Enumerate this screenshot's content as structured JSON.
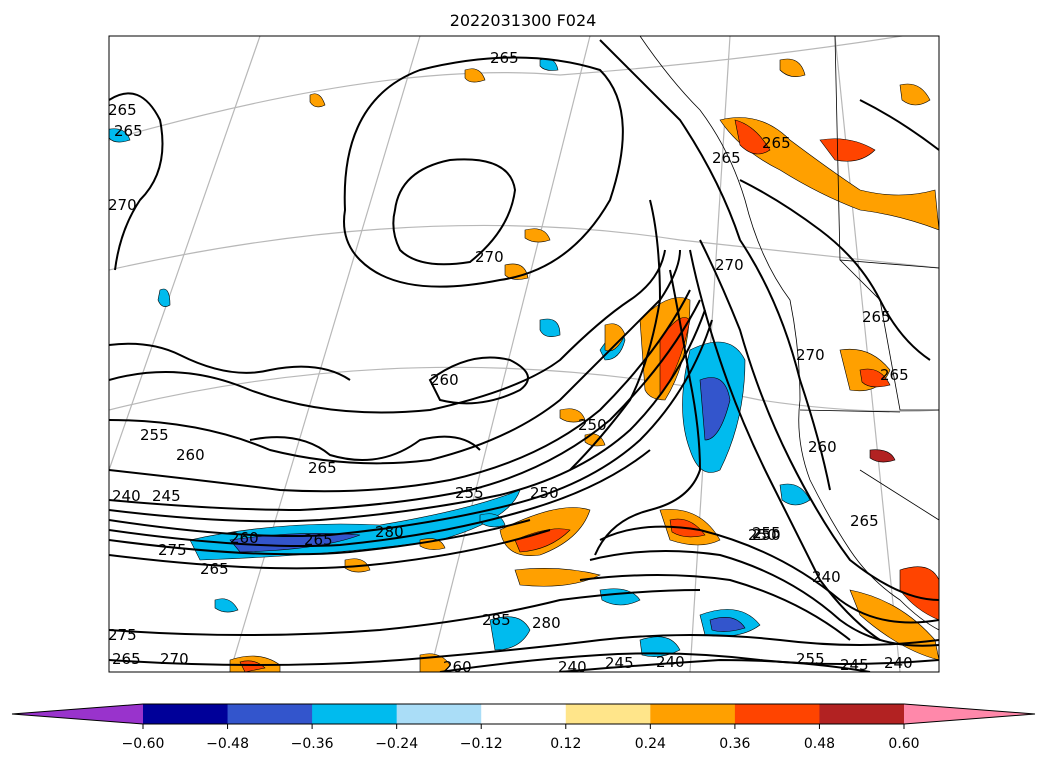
{
  "title": "2022031300 F024",
  "map": {
    "type": "contour map",
    "filled_field_colorbar": true,
    "line_contour_labels_visible": [
      "265",
      "265",
      "265",
      "270",
      "270",
      "270",
      "265",
      "260",
      "255",
      "260",
      "265",
      "240",
      "245",
      "255",
      "250",
      "260",
      "265",
      "280",
      "250",
      "255",
      "265",
      "265",
      "260",
      "270",
      "265",
      "240",
      "285",
      "280",
      "260",
      "240",
      "245",
      "240",
      "250",
      "255",
      "245",
      "240",
      "275",
      "265",
      "270",
      "275",
      "265",
      "250",
      "265"
    ],
    "graticule": true
  },
  "colorbar": {
    "ticks": [
      "−0.60",
      "−0.48",
      "−0.36",
      "−0.24",
      "−0.12",
      "0.12",
      "0.24",
      "0.36",
      "0.48",
      "0.60"
    ],
    "tick_values": [
      -0.6,
      -0.48,
      -0.36,
      -0.24,
      -0.12,
      0.12,
      0.24,
      0.36,
      0.48,
      0.6
    ],
    "colors": [
      "#9933cc",
      "#000099",
      "#3355cc",
      "#00bbee",
      "#aaddf7",
      "#ffffff",
      "#ffe58a",
      "#ffa000",
      "#ff4400",
      "#b22222",
      "#ff88aa"
    ],
    "extend": "both"
  }
}
